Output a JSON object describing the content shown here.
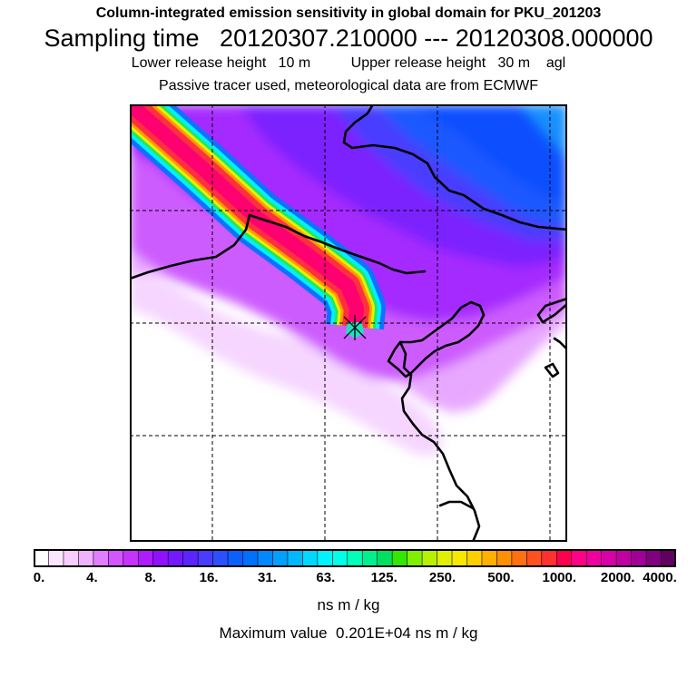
{
  "header": {
    "title": "Column-integrated emission sensitivity in global domain for PKU_201203",
    "sampling": "Sampling time   20120307.210000 --- 20120308.000000",
    "release": "Lower release height   10 m          Upper release height   30 m    agl",
    "tracer": "Passive tracer used, meteorological data are from ECMWF"
  },
  "colorbar": {
    "tick_labels": [
      "0.",
      "4.",
      "8.",
      "16.",
      "31.",
      "63.",
      "125.",
      "250.",
      "500.",
      "1000.",
      "2000.",
      "4000."
    ],
    "colors": [
      "#ffffff",
      "#fbe6ff",
      "#f7ccff",
      "#f0b2ff",
      "#e07eff",
      "#d355ff",
      "#c633ff",
      "#b01aff",
      "#9010ff",
      "#7418ff",
      "#5a25ff",
      "#4a3cff",
      "#2a50ff",
      "#0a60ff",
      "#0070ff",
      "#0088ff",
      "#00a0ff",
      "#00b8ff",
      "#00d8ff",
      "#00f4ff",
      "#00ffe8",
      "#00ffb8",
      "#00f090",
      "#00e060",
      "#30e800",
      "#80f000",
      "#b8f000",
      "#e0f000",
      "#f8e800",
      "#ffd000",
      "#ffb000",
      "#ff9000",
      "#ff7010",
      "#ff5020",
      "#ff3030",
      "#ff0050",
      "#ff0088",
      "#f000a0",
      "#d800a8",
      "#c000a0",
      "#a00098",
      "#800080",
      "#600060"
    ],
    "units": "ns m / kg"
  },
  "footer": {
    "max_value": "Maximum value  0.201E+04 ns m / kg"
  },
  "map": {
    "release_marker": "release-site-star",
    "colors": {
      "background_white": "#ffffff",
      "light_pink": "#f8d8ff",
      "pink": "#ecb0ff",
      "magenta": "#d060ff",
      "violet": "#b030ff",
      "purple": "#8a20ff",
      "indigo": "#5a30ff",
      "blue": "#1d55ff",
      "deep_blue": "#0a4cff",
      "plume_core": "#ff0070",
      "plume_red": "#ff3040",
      "plume_orange": "#ff9000",
      "plume_yellow": "#f0f000",
      "plume_green": "#40f000",
      "plume_cyan": "#00ffff",
      "plume_blue": "#0080ff",
      "coastline": "#000000"
    }
  }
}
